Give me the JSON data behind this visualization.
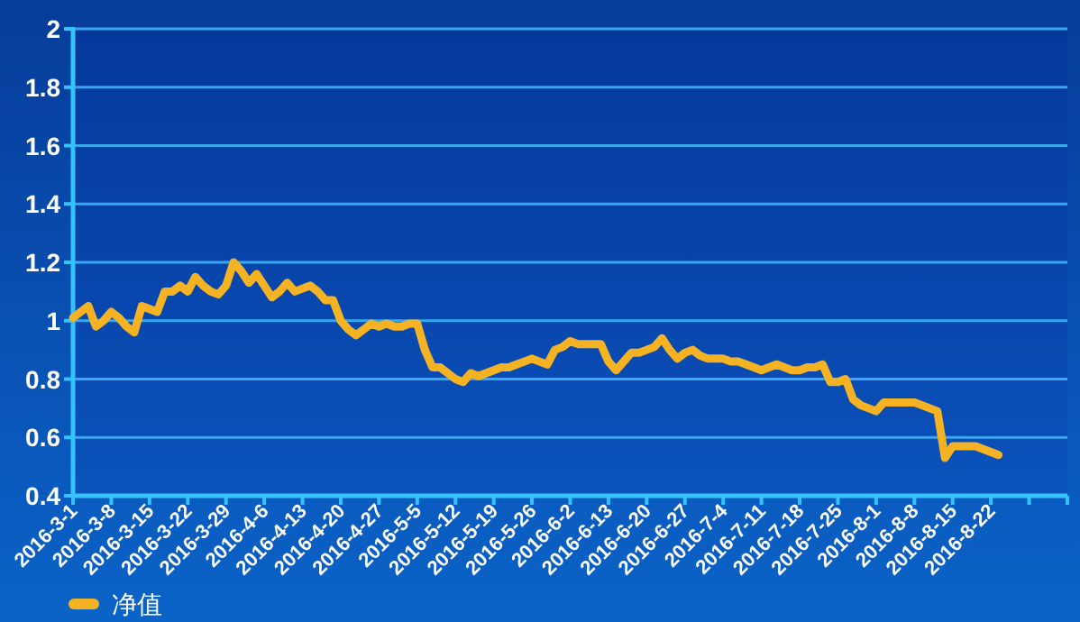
{
  "chart_data": {
    "type": "line",
    "categories": [
      "2016-3-1",
      null,
      null,
      null,
      null,
      "2016-3-8",
      null,
      null,
      null,
      null,
      "2016-3-15",
      null,
      null,
      null,
      null,
      "2016-3-22",
      null,
      null,
      null,
      null,
      "2016-3-29",
      null,
      null,
      null,
      null,
      "2016-4-6",
      null,
      null,
      null,
      null,
      "2016-4-13",
      null,
      null,
      null,
      null,
      "2016-4-20",
      null,
      null,
      null,
      null,
      "2016-4-27",
      null,
      null,
      null,
      null,
      "2016-5-5",
      null,
      null,
      null,
      null,
      "2016-5-12",
      null,
      null,
      null,
      null,
      "2016-5-19",
      null,
      null,
      null,
      null,
      "2016-5-26",
      null,
      null,
      null,
      null,
      "2016-6-2",
      null,
      null,
      null,
      null,
      "2016-6-13",
      null,
      null,
      null,
      null,
      "2016-6-20",
      null,
      null,
      null,
      null,
      "2016-6-27",
      null,
      null,
      null,
      null,
      "2016-7-4",
      null,
      null,
      null,
      null,
      "2016-7-11",
      null,
      null,
      null,
      null,
      "2016-7-18",
      null,
      null,
      null,
      null,
      "2016-7-25",
      null,
      null,
      null,
      null,
      "2016-8-1",
      null,
      null,
      null,
      null,
      "2016-8-8",
      null,
      null,
      null,
      null,
      "2016-8-15",
      null,
      null,
      null,
      null,
      "2016-8-22",
      null,
      null,
      null,
      null,
      null,
      null,
      null,
      null,
      null,
      null
    ],
    "series": [
      {
        "name": "净值",
        "color": "#f5b324",
        "values": [
          1.01,
          1.03,
          1.05,
          0.98,
          1.0,
          1.03,
          1.01,
          0.98,
          0.96,
          1.05,
          1.04,
          1.03,
          1.1,
          1.1,
          1.12,
          1.1,
          1.15,
          1.12,
          1.1,
          1.09,
          1.12,
          1.2,
          1.17,
          1.13,
          1.16,
          1.12,
          1.08,
          1.1,
          1.13,
          1.1,
          1.11,
          1.12,
          1.1,
          1.07,
          1.07,
          1.0,
          0.97,
          0.95,
          0.97,
          0.99,
          0.98,
          0.99,
          0.98,
          0.98,
          0.99,
          0.99,
          0.9,
          0.84,
          0.84,
          0.82,
          0.8,
          0.79,
          0.82,
          0.81,
          0.82,
          0.83,
          0.84,
          0.84,
          0.85,
          0.86,
          0.87,
          0.86,
          0.85,
          0.9,
          0.91,
          0.93,
          0.92,
          0.92,
          0.92,
          0.92,
          0.86,
          0.83,
          0.86,
          0.89,
          0.89,
          0.9,
          0.91,
          0.94,
          0.9,
          0.87,
          0.89,
          0.9,
          0.88,
          0.87,
          0.87,
          0.87,
          0.86,
          0.86,
          0.85,
          0.84,
          0.83,
          0.84,
          0.85,
          0.84,
          0.83,
          0.83,
          0.84,
          0.84,
          0.85,
          0.79,
          0.79,
          0.8,
          0.73,
          0.71,
          0.7,
          0.69,
          0.72,
          0.72,
          0.72,
          0.72,
          0.72,
          0.71,
          0.7,
          0.69,
          0.53,
          0.57,
          0.57,
          0.57,
          0.57,
          0.56,
          0.55,
          0.54,
          null,
          null,
          null,
          null,
          null,
          null,
          null,
          null,
          null
        ]
      }
    ],
    "ylim": [
      0.4,
      2
    ],
    "yticks": [
      0.4,
      0.6,
      0.8,
      1,
      1.2,
      1.4,
      1.6,
      1.8,
      2
    ],
    "grid": "y",
    "legend": "bottom left"
  }
}
